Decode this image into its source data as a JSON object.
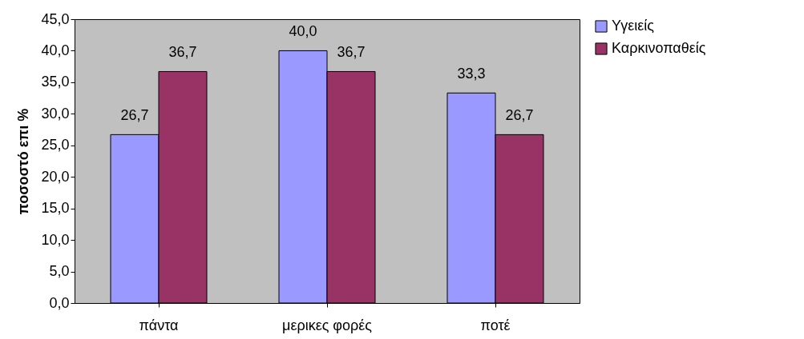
{
  "chart_data": {
    "type": "bar",
    "ylabel": "ποσοστό επι %",
    "categories": [
      "πάντα",
      "μερικες φορές",
      "ποτέ"
    ],
    "series": [
      {
        "name": "Υγειείς",
        "color": "#9999ff",
        "values": [
          26.7,
          40.0,
          33.3
        ],
        "value_labels": [
          "26,7",
          "40,0",
          "33,3"
        ]
      },
      {
        "name": "Καρκινοπαθείς",
        "color": "#993366",
        "values": [
          36.7,
          36.7,
          26.7
        ],
        "value_labels": [
          "36,7",
          "36,7",
          "26,7"
        ]
      }
    ],
    "ylim": [
      0,
      45
    ],
    "yticks": [
      {
        "value": 0,
        "label": "0,0"
      },
      {
        "value": 5,
        "label": "5,0"
      },
      {
        "value": 10,
        "label": "10,0"
      },
      {
        "value": 15,
        "label": "15,0"
      },
      {
        "value": 20,
        "label": "20,0"
      },
      {
        "value": 25,
        "label": "25,0"
      },
      {
        "value": 30,
        "label": "30,0"
      },
      {
        "value": 35,
        "label": "35,0"
      },
      {
        "value": 40,
        "label": "40,0"
      },
      {
        "value": 45,
        "label": "45,0"
      }
    ],
    "grid": false,
    "legend": "right"
  }
}
